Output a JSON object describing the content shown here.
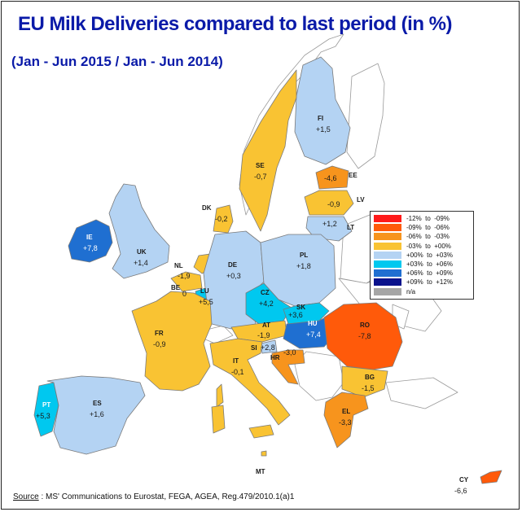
{
  "title": "EU Milk Deliveries compared to last period (in %)",
  "subtitle": "(Jan - Jun 2015 / Jan - Jun 2014)",
  "source": {
    "label": "Source",
    "text": " : MS' Communications to Eurostat, FEGA, AGEA, Reg.479/2010.1(a)1"
  },
  "legend": [
    {
      "label": "-12%  to  -09%",
      "color": "#ff1a1a"
    },
    {
      "label": "-09%  to  -06%",
      "color": "#ff5a0a"
    },
    {
      "label": "-06%  to  -03%",
      "color": "#f7941d"
    },
    {
      "label": "-03%  to  +00%",
      "color": "#f9c333"
    },
    {
      "label": "+00%  to  +03%",
      "color": "#b4d3f3"
    },
    {
      "label": "+03%  to  +06%",
      "color": "#00c8ef"
    },
    {
      "label": "+06%  to  +09%",
      "color": "#1f6fd1"
    },
    {
      "label": "+09%  to  +12%",
      "color": "#0a128c"
    },
    {
      "label": "n/a",
      "color": "#a6a6a6"
    }
  ],
  "countries": {
    "FI": {
      "code": "FI",
      "value": "+1,5",
      "color": "#b4d3f3"
    },
    "SE": {
      "code": "SE",
      "value": "-0,7",
      "color": "#f9c333"
    },
    "EE": {
      "code": "EE",
      "value": "-4,6",
      "color": "#f7941d"
    },
    "LV": {
      "code": "LV",
      "value": "-0,9",
      "color": "#f9c333"
    },
    "LT": {
      "code": "LT",
      "value": "+1,2",
      "color": "#b4d3f3"
    },
    "DK": {
      "code": "DK",
      "value": "-0,2",
      "color": "#f9c333"
    },
    "IE": {
      "code": "IE",
      "value": "+7,8",
      "color": "#1f6fd1"
    },
    "UK": {
      "code": "UK",
      "value": "+1,4",
      "color": "#b4d3f3"
    },
    "NL": {
      "code": "NL",
      "value": "-1,9",
      "color": "#f9c333"
    },
    "BE": {
      "code": "BE",
      "value": "0",
      "color": "#f9c333"
    },
    "LU": {
      "code": "LU",
      "value": "+5,5",
      "color": "#00c8ef"
    },
    "DE": {
      "code": "DE",
      "value": "+0,3",
      "color": "#b4d3f3"
    },
    "PL": {
      "code": "PL",
      "value": "+1,8",
      "color": "#b4d3f3"
    },
    "CZ": {
      "code": "CZ",
      "value": "+4,2",
      "color": "#00c8ef"
    },
    "SK": {
      "code": "SK",
      "value": "+3,6",
      "color": "#00c8ef"
    },
    "AT": {
      "code": "AT",
      "value": "-1,9",
      "color": "#f9c333"
    },
    "HU": {
      "code": "HU",
      "value": "+7,4",
      "color": "#1f6fd1"
    },
    "RO": {
      "code": "RO",
      "value": "-7,8",
      "color": "#ff5a0a"
    },
    "FR": {
      "code": "FR",
      "value": "-0,9",
      "color": "#f9c333"
    },
    "SI": {
      "code": "SI",
      "value": "+2,8",
      "color": "#b4d3f3"
    },
    "HR": {
      "code": "HR",
      "value": "-3,0",
      "color": "#f7941d"
    },
    "IT": {
      "code": "IT",
      "value": "-0,1",
      "color": "#f9c333"
    },
    "BG": {
      "code": "BG",
      "value": "-1,5",
      "color": "#f9c333"
    },
    "EL": {
      "code": "EL",
      "value": "-3,3",
      "color": "#f7941d"
    },
    "PT": {
      "code": "PT",
      "value": "+5,3",
      "color": "#00c8ef"
    },
    "ES": {
      "code": "ES",
      "value": "+1,6",
      "color": "#b4d3f3"
    },
    "MT": {
      "code": "MT",
      "value": "",
      "color": "#f9c333"
    },
    "CY": {
      "code": "CY",
      "value": "-6,6",
      "color": "#ff5a0a"
    }
  }
}
